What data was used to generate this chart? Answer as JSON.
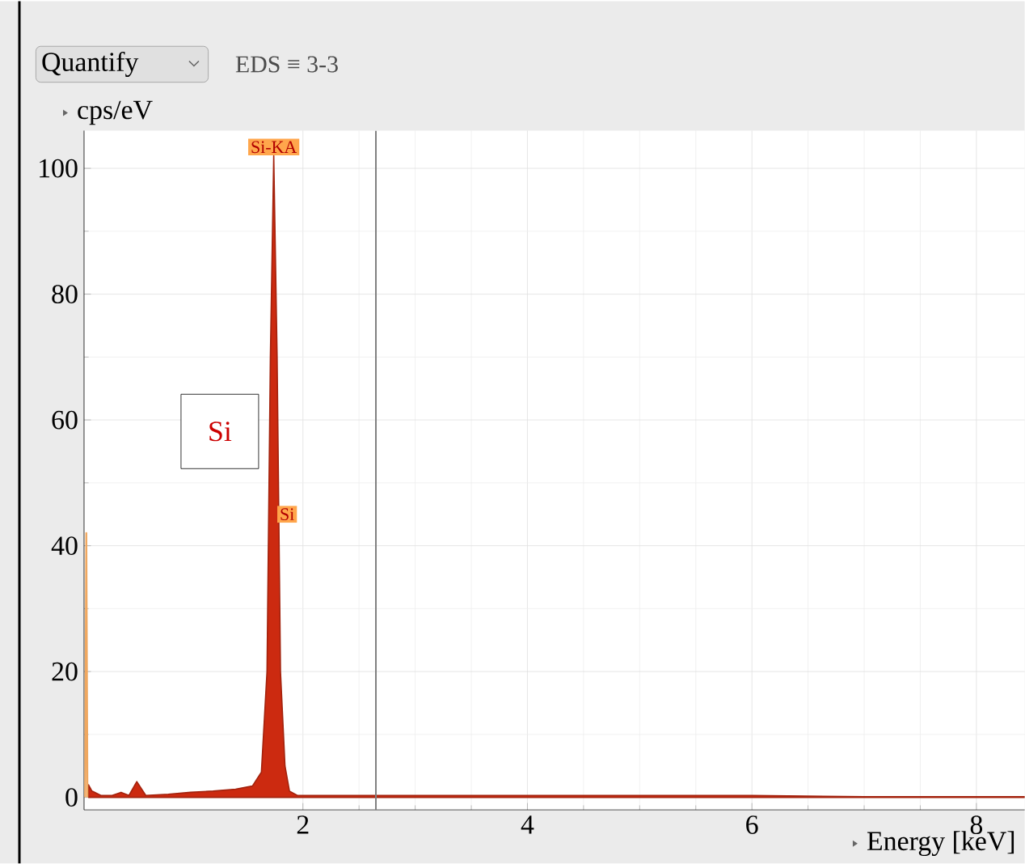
{
  "chart_data": {
    "type": "area",
    "xlabel": "Energy [keV]",
    "ylabel": "cps/eV",
    "xlim": [
      0.05,
      8.43
    ],
    "ylim": [
      -2,
      106
    ],
    "xticks": [
      2,
      4,
      6,
      8
    ],
    "yticks": [
      0,
      20,
      40,
      60,
      80,
      100
    ],
    "grid": true,
    "series": [
      {
        "color": "#cc2a10",
        "x": [
          0.09,
          0.12,
          0.2,
          0.3,
          0.38,
          0.45,
          0.52,
          0.6,
          0.7,
          0.8,
          1.0,
          1.2,
          1.4,
          1.55,
          1.63,
          1.68,
          1.71,
          1.74,
          1.77,
          1.8,
          1.84,
          1.88,
          1.95,
          2.2,
          3.0,
          4.0,
          5.0,
          6.0,
          6.5,
          7.0,
          8.0,
          8.43
        ],
        "values": [
          2,
          1,
          0.3,
          0.3,
          0.8,
          0.3,
          2.5,
          0.3,
          0.4,
          0.5,
          0.8,
          1,
          1.3,
          1.8,
          4,
          20,
          70,
          102,
          70,
          20,
          5,
          1,
          0.3,
          0.3,
          0.3,
          0.3,
          0.3,
          0.3,
          0.2,
          0.1,
          0.1,
          0.1
        ]
      },
      {
        "type": "line",
        "color": "#f0a860",
        "x": [
          0.06,
          0.07,
          0.08
        ],
        "values": [
          0,
          42,
          0
        ]
      }
    ],
    "ref_lines": [
      {
        "axis": "x",
        "value": 2.65,
        "color": "#808080"
      }
    ],
    "annotations": [
      "Quantify",
      "EDS ≡ 3-3",
      "Si",
      {
        "text": "Si-KA",
        "x": 1.74,
        "y": 102
      },
      {
        "text": "Si",
        "x": 1.74,
        "y": 45
      }
    ]
  }
}
